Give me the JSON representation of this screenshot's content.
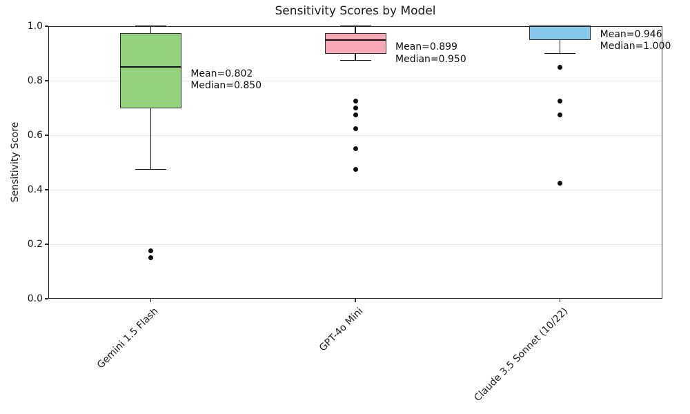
{
  "chart_data": {
    "type": "boxplot",
    "title": "Sensitivity Scores by Model",
    "ylabel": "Sensitivity Score",
    "ylim": [
      0.0,
      1.0
    ],
    "yticks": [
      "0.0",
      "0.2",
      "0.4",
      "0.6",
      "0.8",
      "1.0"
    ],
    "grid": "horizontal",
    "grid_color": "#e5e5e5",
    "box_edge_color": "#2f2f2f",
    "series": [
      {
        "label": "Gemini 1.5 Flash",
        "fill_color": "#93d37e",
        "stats": {
          "whisker_low": 0.475,
          "q1": 0.7,
          "median": 0.85,
          "q3": 0.975,
          "whisker_high": 1.0,
          "mean": 0.802
        },
        "outliers": [
          0.175,
          0.15
        ],
        "annotation": {
          "line1": "Mean=0.802",
          "line2": "Median=0.850"
        }
      },
      {
        "label": "GPT-4o Mini",
        "fill_color": "#f9a8b8",
        "stats": {
          "whisker_low": 0.875,
          "q1": 0.9,
          "median": 0.95,
          "q3": 0.975,
          "whisker_high": 1.0,
          "mean": 0.899
        },
        "outliers": [
          0.725,
          0.7,
          0.675,
          0.625,
          0.55,
          0.475
        ],
        "annotation": {
          "line1": "Mean=0.899",
          "line2": "Median=0.950"
        }
      },
      {
        "label": "Claude 3.5 Sonnet (10/22)",
        "fill_color": "#87c9ee",
        "stats": {
          "whisker_low": 0.9,
          "q1": 0.95,
          "median": 1.0,
          "q3": 1.0,
          "whisker_high": 1.0,
          "mean": 0.946
        },
        "outliers": [
          0.85,
          0.725,
          0.675,
          0.425
        ],
        "annotation": {
          "line1": "Mean=0.946",
          "line2": "Median=1.000"
        }
      }
    ]
  }
}
